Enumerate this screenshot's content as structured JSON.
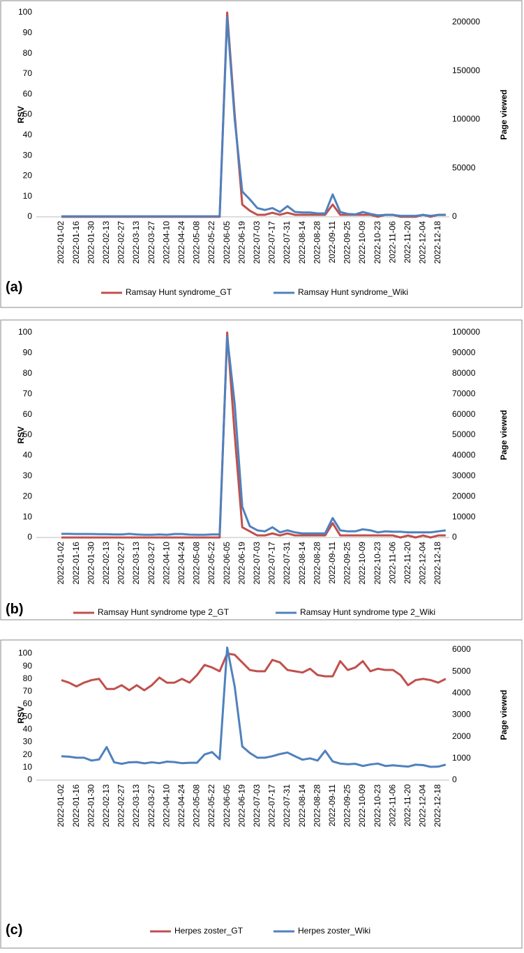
{
  "chart_data": [
    {
      "type": "line",
      "label": "(a)",
      "y_label": "RSV",
      "y2_label": "Page viewed",
      "categories": [
        "2022-01-02",
        null,
        "2022-01-16",
        null,
        "2022-01-30",
        null,
        "2022-02-13",
        null,
        "2022-02-27",
        null,
        "2022-03-13",
        null,
        "2022-03-27",
        null,
        "2022-04-10",
        null,
        "2022-04-24",
        null,
        "2022-05-08",
        null,
        "2022-05-22",
        null,
        "2022-06-05",
        null,
        "2022-06-19",
        null,
        "2022-07-03",
        null,
        "2022-07-17",
        null,
        "2022-07-31",
        null,
        "2022-08-14",
        null,
        "2022-08-28",
        null,
        "2022-09-11",
        null,
        "2022-09-25",
        null,
        "2022-10-09",
        null,
        "2022-10-23",
        null,
        "2022-11-06",
        null,
        "2022-11-20",
        null,
        "2022-12-04",
        null,
        "2022-12-18",
        null
      ],
      "ylim": [
        0,
        100
      ],
      "yticks": [
        0,
        10,
        20,
        30,
        40,
        50,
        60,
        70,
        80,
        90,
        100
      ],
      "y2lim": [
        0,
        210000
      ],
      "y2ticks": [
        0,
        50000,
        100000,
        150000,
        200000
      ],
      "series": [
        {
          "name": "Ramsay Hunt syndrome_GT",
          "color": "#c0504d",
          "values": [
            0,
            0,
            0,
            0,
            0,
            0,
            0,
            0,
            0,
            0,
            0,
            0,
            0,
            0,
            0,
            0,
            0,
            0,
            0,
            0,
            0,
            0,
            100,
            50,
            6,
            3,
            1,
            1,
            2,
            1,
            2,
            1,
            1,
            1,
            1,
            1,
            6,
            1,
            1,
            1,
            1,
            1,
            0,
            1,
            1,
            0,
            0,
            0,
            1,
            0,
            1,
            1
          ]
        },
        {
          "name": "Ramsay Hunt syndrome_Wiki",
          "color": "#4f81bd",
          "axis": "y2",
          "values": [
            500,
            500,
            500,
            500,
            500,
            500,
            500,
            500,
            500,
            500,
            500,
            500,
            500,
            500,
            500,
            500,
            500,
            500,
            500,
            500,
            500,
            500,
            205000,
            100000,
            26000,
            18000,
            9000,
            7000,
            9000,
            5000,
            11000,
            5000,
            4500,
            4500,
            3500,
            3500,
            23000,
            5000,
            3000,
            2500,
            5000,
            3000,
            1500,
            2000,
            2000,
            1000,
            1000,
            1000,
            2000,
            1000,
            2000,
            2000
          ]
        }
      ]
    },
    {
      "type": "line",
      "label": "(b)",
      "y_label": "RSV",
      "y2_label": "Page viewed",
      "categories": [
        "2022-01-02",
        null,
        "2022-01-16",
        null,
        "2022-01-30",
        null,
        "2022-02-13",
        null,
        "2022-02-27",
        null,
        "2022-03-13",
        null,
        "2022-03-27",
        null,
        "2022-04-10",
        null,
        "2022-04-24",
        null,
        "2022-05-08",
        null,
        "2022-05-22",
        null,
        "2022-06-05",
        null,
        "2022-06-19",
        null,
        "2022-07-03",
        null,
        "2022-07-17",
        null,
        "2022-07-31",
        null,
        "2022-08-14",
        null,
        "2022-08-28",
        null,
        "2022-09-11",
        null,
        "2022-09-25",
        null,
        "2022-10-09",
        null,
        "2022-10-23",
        null,
        "2022-11-06",
        null,
        "2022-11-20",
        null,
        "2022-12-04",
        null,
        "2022-12-18",
        null
      ],
      "ylim": [
        0,
        100
      ],
      "yticks": [
        0,
        10,
        20,
        30,
        40,
        50,
        60,
        70,
        80,
        90,
        100
      ],
      "y2lim": [
        0,
        100000
      ],
      "y2ticks": [
        0,
        10000,
        20000,
        30000,
        40000,
        50000,
        60000,
        70000,
        80000,
        90000,
        100000
      ],
      "series": [
        {
          "name": "Ramsay Hunt syndrome type 2_GT",
          "color": "#c0504d",
          "values": [
            0,
            0,
            0,
            0,
            0,
            0,
            0,
            0,
            0,
            0,
            0,
            0,
            0,
            0,
            0,
            0,
            0,
            0,
            0,
            0,
            0,
            0,
            100,
            50,
            5,
            3,
            1,
            1,
            2,
            1,
            2,
            1,
            1,
            1,
            1,
            1,
            7,
            1,
            1,
            1,
            1,
            1,
            1,
            1,
            1,
            0,
            1,
            0,
            1,
            0,
            1,
            1
          ]
        },
        {
          "name": "Ramsay Hunt syndrome type 2_Wiki",
          "color": "#4f81bd",
          "axis": "y2",
          "values": [
            1800,
            1800,
            1700,
            1700,
            1700,
            1600,
            1600,
            1500,
            1500,
            1800,
            1500,
            1300,
            1300,
            1500,
            1300,
            1700,
            1700,
            1400,
            1300,
            1300,
            1500,
            1500,
            98000,
            65000,
            15000,
            5500,
            3500,
            3000,
            5000,
            2500,
            3500,
            2500,
            2000,
            2000,
            2000,
            2000,
            9500,
            3500,
            3000,
            3000,
            4000,
            3500,
            2500,
            3000,
            2800,
            2800,
            2500,
            2500,
            2500,
            2500,
            3000,
            3500
          ]
        }
      ]
    },
    {
      "type": "line",
      "label": "(c)",
      "y_label": "RSV",
      "y2_label": "Page viewed",
      "categories": [
        "2022-01-02",
        null,
        "2022-01-16",
        null,
        "2022-01-30",
        null,
        "2022-02-13",
        null,
        "2022-02-27",
        null,
        "2022-03-13",
        null,
        "2022-03-27",
        null,
        "2022-04-10",
        null,
        "2022-04-24",
        null,
        "2022-05-08",
        null,
        "2022-05-22",
        null,
        "2022-06-05",
        null,
        "2022-06-19",
        null,
        "2022-07-03",
        null,
        "2022-07-17",
        null,
        "2022-07-31",
        null,
        "2022-08-14",
        null,
        "2022-08-28",
        null,
        "2022-09-11",
        null,
        "2022-09-25",
        null,
        "2022-10-09",
        null,
        "2022-10-23",
        null,
        "2022-11-06",
        null,
        "2022-11-20",
        null,
        "2022-12-04",
        null,
        "2022-12-18",
        null
      ],
      "ylim": [
        0,
        103
      ],
      "yticks": [
        0,
        10,
        20,
        30,
        40,
        50,
        60,
        70,
        80,
        90,
        100
      ],
      "y2lim": [
        0,
        6000
      ],
      "y2ticks": [
        0,
        1000,
        2000,
        3000,
        4000,
        5000,
        6000
      ],
      "series": [
        {
          "name": "Herpes zoster_GT",
          "color": "#c0504d",
          "values": [
            79,
            77,
            74,
            77,
            79,
            80,
            72,
            72,
            75,
            71,
            75,
            71,
            75,
            81,
            77,
            77,
            80,
            77,
            83,
            91,
            89,
            86,
            100,
            99,
            93,
            87,
            86,
            86,
            95,
            93,
            87,
            86,
            85,
            88,
            83,
            82,
            82,
            94,
            87,
            89,
            94,
            86,
            88,
            87,
            87,
            83,
            75,
            79,
            80,
            79,
            77,
            80
          ]
        },
        {
          "name": "Herpes zoster_Wiki",
          "color": "#4f81bd",
          "axis": "y2",
          "values": [
            1100,
            1080,
            1030,
            1030,
            900,
            950,
            1520,
            820,
            750,
            820,
            830,
            770,
            820,
            780,
            850,
            830,
            780,
            800,
            800,
            1180,
            1290,
            960,
            6100,
            4300,
            1550,
            1250,
            1030,
            1030,
            1100,
            1200,
            1270,
            1100,
            940,
            1000,
            900,
            1350,
            860,
            760,
            730,
            750,
            650,
            720,
            760,
            650,
            680,
            650,
            620,
            710,
            690,
            610,
            620,
            710
          ]
        }
      ]
    }
  ]
}
